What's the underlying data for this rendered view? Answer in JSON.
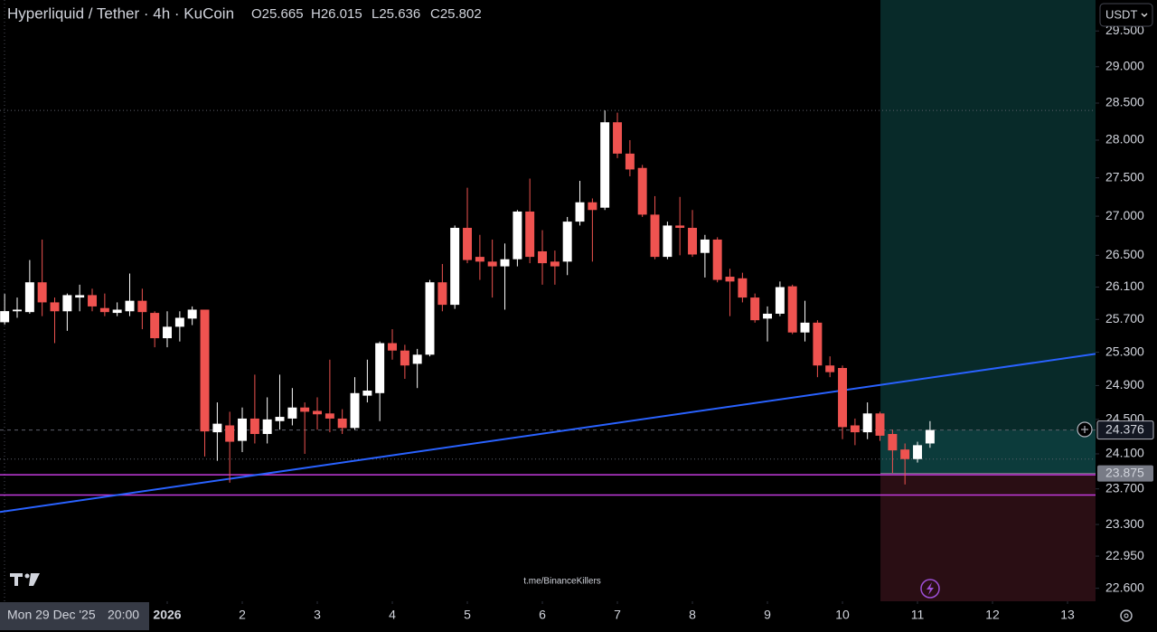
{
  "chart_data": {
    "type": "candlestick",
    "title": "Hyperliquid / Tether · 4h · KuCoin",
    "legend_ohlc": [
      "O25.665",
      "H26.015",
      "L25.636",
      "C25.802"
    ],
    "currency_button": "USDT",
    "watermark": "t.me/BinanceKillers",
    "crosshair_date": "Mon 29 Dec '25",
    "crosshair_time": "20:00",
    "log_scale": true,
    "up_color": "#ffffff",
    "down_color": "#ef5350",
    "xlim": [
      -1.229,
      13.373
    ],
    "xticks": [
      {
        "value": 1,
        "label": "2026"
      },
      2,
      3,
      4,
      5,
      6,
      7,
      8,
      9,
      10,
      11,
      12,
      13
    ],
    "ylim": [
      22.46,
      29.94
    ],
    "yticks": [
      {
        "value": 22.6,
        "label": "22.600"
      },
      {
        "value": 22.95,
        "label": "22.950"
      },
      {
        "value": 23.3,
        "label": "23.300"
      },
      {
        "value": 23.7,
        "label": "23.700"
      },
      {
        "value": 24.1,
        "label": "24.100"
      },
      {
        "value": 24.5,
        "label": "24.500"
      },
      {
        "value": 24.9,
        "label": "24.900"
      },
      {
        "value": 25.3,
        "label": "25.300"
      },
      {
        "value": 25.7,
        "label": "25.700"
      },
      {
        "value": 26.1,
        "label": "26.100"
      },
      {
        "value": 26.5,
        "label": "26.500"
      },
      {
        "value": 27,
        "label": "27.000"
      },
      {
        "value": 27.5,
        "label": "27.500"
      },
      {
        "value": 28,
        "label": "28.000"
      },
      {
        "value": 28.5,
        "label": "28.500"
      },
      {
        "value": 29,
        "label": "29.000"
      },
      {
        "value": 29.5,
        "label": "29.500"
      }
    ],
    "x": [
      -1.167,
      -1,
      -0.833,
      -0.667,
      -0.5,
      -0.333,
      -0.167,
      0,
      0.167,
      0.333,
      0.5,
      0.667,
      0.833,
      1,
      1.167,
      1.333,
      1.5,
      1.667,
      1.833,
      2,
      2.167,
      2.333,
      2.5,
      2.667,
      2.833,
      3,
      3.167,
      3.333,
      3.5,
      3.667,
      3.833,
      4,
      4.167,
      4.333,
      4.5,
      4.667,
      4.833,
      5,
      5.167,
      5.333,
      5.5,
      5.667,
      5.833,
      6,
      6.167,
      6.333,
      6.5,
      6.667,
      6.833,
      7,
      7.167,
      7.333,
      7.5,
      7.667,
      7.833,
      8,
      8.167,
      8.333,
      8.5,
      8.667,
      8.833,
      9,
      9.167,
      9.333,
      9.5,
      9.667,
      9.833,
      10,
      10.167,
      10.333,
      10.5,
      10.667,
      10.833,
      11,
      11.167
    ],
    "open": [
      25.665,
      25.8,
      25.79,
      26.16,
      25.91,
      25.8,
      25.97,
      26.0,
      25.84,
      25.78,
      25.8,
      25.93,
      25.78,
      25.47,
      25.61,
      25.71,
      25.82,
      24.35,
      24.43,
      24.25,
      24.51,
      24.33,
      24.48,
      24.51,
      24.64,
      24.6,
      24.57,
      24.51,
      24.4,
      24.78,
      24.81,
      25.41,
      25.32,
      25.16,
      25.27,
      26.16,
      25.88,
      26.85,
      26.48,
      26.42,
      26.36,
      26.45,
      27.06,
      26.55,
      26.42,
      26.42,
      26.93,
      27.18,
      27.11,
      28.24,
      27.82,
      27.63,
      27.02,
      26.48,
      26.88,
      26.85,
      26.53,
      26.7,
      26.23,
      26.21,
      25.97,
      25.71,
      25.77,
      26.11,
      25.54,
      25.66,
      25.14,
      25.11,
      24.43,
      24.35,
      24.57,
      24.33,
      24.15,
      24.04,
      24.22
    ],
    "high": [
      26.015,
      25.97,
      26.44,
      26.7,
      25.97,
      26.02,
      26.13,
      26.08,
      26.02,
      25.91,
      26.27,
      26.08,
      25.8,
      25.8,
      25.8,
      25.86,
      25.82,
      24.7,
      24.59,
      24.64,
      25.03,
      24.76,
      25.03,
      24.87,
      24.7,
      24.76,
      25.21,
      24.62,
      25.0,
      25.21,
      25.43,
      25.58,
      25.39,
      25.34,
      26.19,
      26.39,
      26.88,
      27.37,
      26.76,
      26.7,
      26.65,
      27.08,
      27.49,
      26.82,
      26.56,
      26.99,
      27.46,
      27.23,
      28.4,
      28.37,
      28.0,
      27.67,
      27.26,
      26.93,
      27.25,
      27.08,
      26.76,
      26.73,
      26.33,
      26.28,
      26.02,
      25.86,
      26.17,
      26.13,
      25.93,
      25.69,
      25.25,
      25.14,
      24.51,
      24.7,
      24.59,
      24.38,
      24.22,
      24.24,
      24.48
    ],
    "low": [
      25.636,
      25.72,
      25.77,
      25.74,
      25.41,
      25.56,
      25.8,
      25.8,
      25.74,
      25.74,
      25.74,
      25.58,
      25.36,
      25.36,
      25.43,
      25.63,
      24.07,
      24.02,
      23.77,
      24.12,
      24.22,
      24.22,
      24.38,
      24.43,
      24.1,
      24.38,
      24.35,
      24.33,
      24.38,
      24.7,
      24.48,
      25.21,
      24.98,
      24.87,
      25.25,
      25.8,
      25.83,
      26.4,
      26.19,
      25.97,
      25.82,
      26.36,
      26.4,
      26.13,
      26.13,
      26.25,
      26.88,
      26.42,
      27.08,
      27.76,
      27.52,
      26.99,
      26.45,
      26.45,
      26.5,
      26.48,
      26.22,
      26.16,
      25.74,
      25.91,
      25.66,
      25.43,
      25.74,
      25.52,
      25.43,
      25.0,
      25.0,
      24.27,
      24.2,
      24.27,
      24.25,
      23.88,
      23.75,
      24.0,
      24.17
    ],
    "close": [
      25.802,
      25.82,
      26.16,
      25.91,
      25.8,
      26.0,
      26.0,
      25.86,
      25.79,
      25.82,
      25.93,
      25.79,
      25.47,
      25.61,
      25.72,
      25.82,
      24.36,
      24.45,
      24.24,
      24.51,
      24.33,
      24.5,
      24.53,
      24.64,
      24.59,
      24.56,
      24.51,
      24.4,
      24.81,
      24.84,
      25.41,
      25.32,
      25.14,
      25.27,
      26.16,
      25.88,
      26.85,
      26.44,
      26.42,
      26.36,
      26.45,
      27.06,
      26.48,
      26.4,
      26.36,
      26.93,
      27.18,
      27.08,
      28.24,
      27.82,
      27.61,
      27.02,
      26.48,
      26.88,
      26.85,
      26.51,
      26.7,
      26.19,
      26.17,
      25.97,
      25.69,
      25.77,
      26.1,
      25.54,
      25.66,
      25.14,
      25.06,
      24.41,
      24.35,
      24.57,
      24.31,
      24.14,
      24.04,
      24.2,
      24.376
    ],
    "trendline": {
      "x": [
        -1.229,
        13.373
      ],
      "y": [
        23.44,
        25.28
      ],
      "color": "#2962ff"
    },
    "hlines": [
      {
        "value": 28.4,
        "color": "#5d606b",
        "dash": "1 3"
      },
      {
        "value": 24.04,
        "color": "#5d606b",
        "dash": "1 3"
      },
      {
        "value": 23.86,
        "color": "#c23bdc",
        "dash": "none"
      },
      {
        "value": 23.63,
        "color": "#c23bdc",
        "dash": "none"
      }
    ],
    "position": {
      "x": 10.506,
      "entry": 23.875,
      "target_color": "#082a29",
      "profit_color": "#0c3b3b",
      "stop_color": "#2a0e14"
    },
    "last_price": {
      "value": 24.376,
      "label": "24.376"
    },
    "entry_price": {
      "value": 23.875,
      "label": "23.875"
    }
  }
}
